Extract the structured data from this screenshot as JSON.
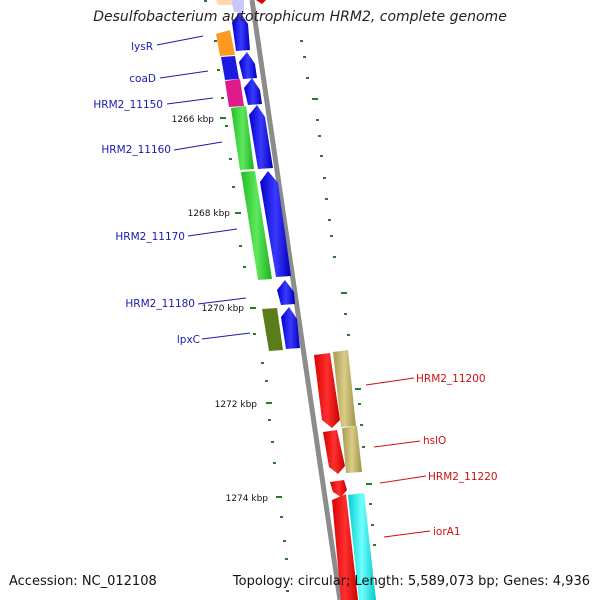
{
  "title": "Desulfobacterium autotrophicum HRM2, complete genome",
  "footer": {
    "accession": "Accession: NC_012108",
    "summary": "Topology: circular; Length: 5,589,073 bp; Genes: 4,936"
  },
  "colors": {
    "backbone": "#8c8c8c",
    "tick": "#2a7a2a",
    "label_blue": "#1a1ab0",
    "label_red": "#d01010"
  },
  "kbp_labels": [
    {
      "id": "1266",
      "label": "1266 kbp"
    },
    {
      "id": "1268",
      "label": "1268 kbp"
    },
    {
      "id": "1270",
      "label": "1270 kbp"
    },
    {
      "id": "1272",
      "label": "1272 kbp"
    },
    {
      "id": "1274",
      "label": "1274 kbp"
    }
  ],
  "gene_labels": {
    "left": [
      "lysR",
      "coaD",
      "HRM2_11150",
      "HRM2_11160",
      "HRM2_11170",
      "HRM2_11180",
      "lpxC"
    ],
    "right": [
      "HRM2_11200",
      "hslO",
      "HRM2_11220",
      "iorA1"
    ]
  }
}
